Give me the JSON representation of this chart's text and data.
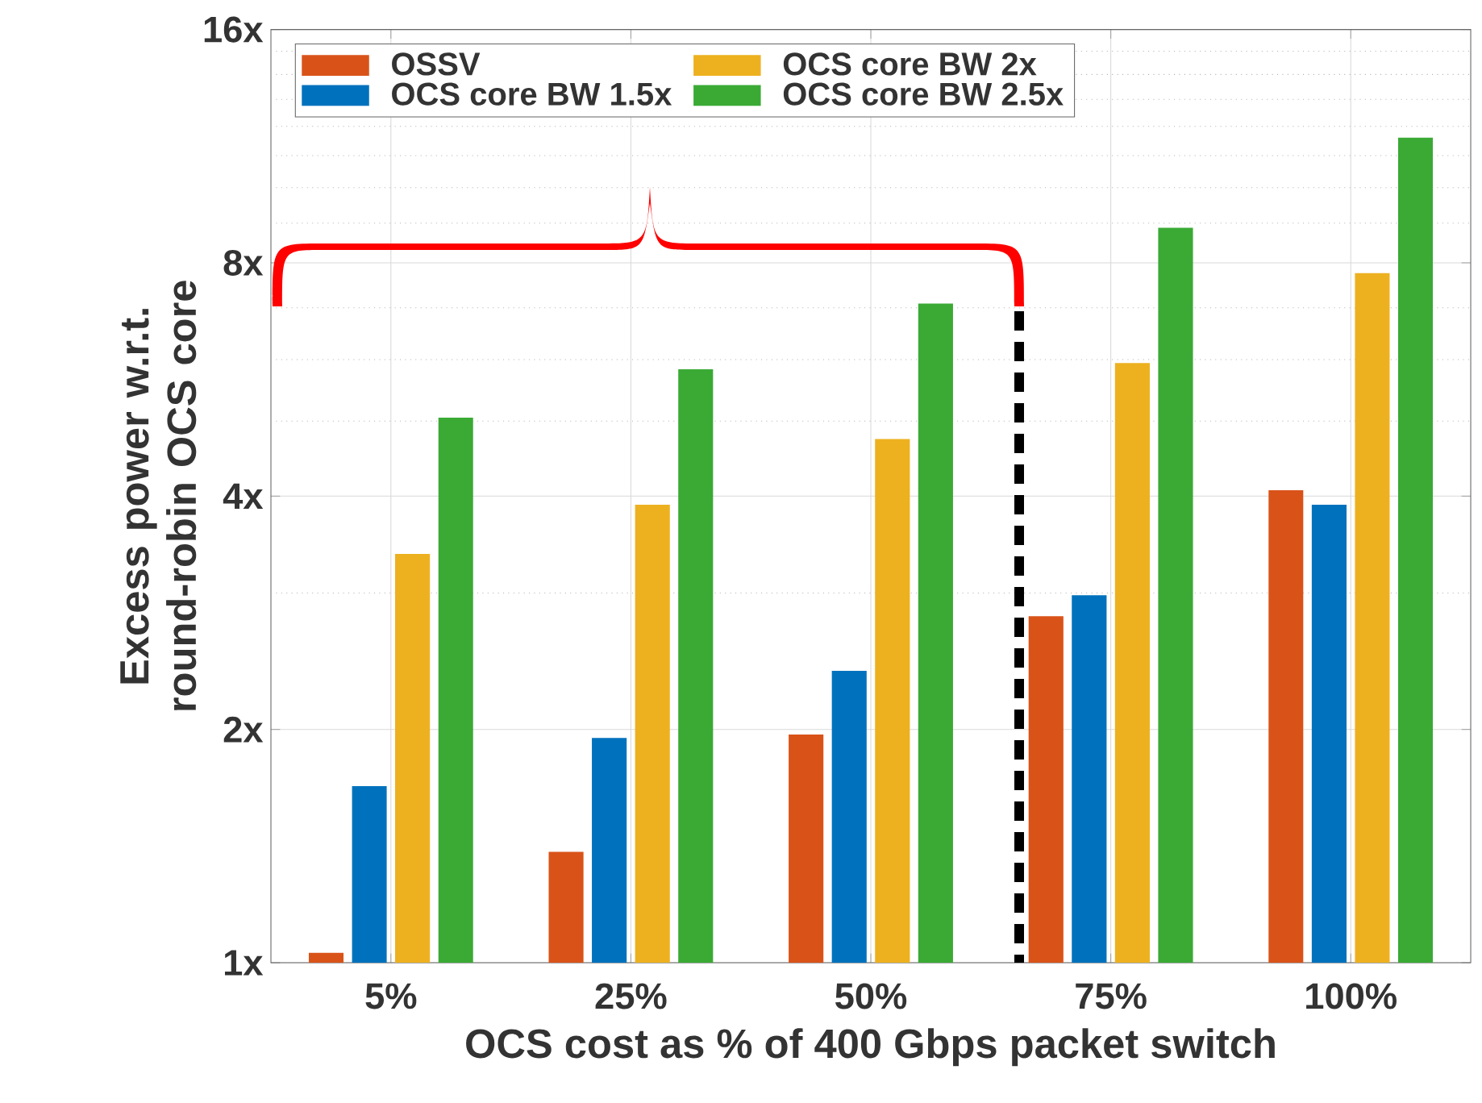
{
  "chart_data": {
    "type": "bar",
    "xlabel": "OCS cost as % of 400 Gbps packet switch",
    "ylabel": "Excess power w.r.t. round-robin OCS core",
    "categories": [
      "5%",
      "25%",
      "50%",
      "75%",
      "100%"
    ],
    "series": [
      {
        "name": "OSSV",
        "color": "#d95319",
        "values": [
          1.03,
          1.39,
          1.97,
          2.8,
          4.07
        ]
      },
      {
        "name": "OCS core BW 1.5x",
        "color": "#0072bd",
        "values": [
          1.69,
          1.95,
          2.38,
          2.98,
          3.9
        ]
      },
      {
        "name": "OCS core BW 2x",
        "color": "#edb120",
        "values": [
          3.37,
          3.9,
          4.74,
          5.94,
          7.76
        ]
      },
      {
        "name": "OCS core BW 2.5x",
        "color": "#3aaa35",
        "values": [
          5.05,
          5.83,
          7.09,
          8.88,
          11.6
        ]
      }
    ],
    "log": "y",
    "ylim": [
      1,
      16
    ],
    "yticks": [
      {
        "value": 1,
        "label": "1x"
      },
      {
        "value": 2,
        "label": "2x"
      },
      {
        "value": 4,
        "label": "4x"
      },
      {
        "value": 8,
        "label": "8x"
      },
      {
        "value": 16,
        "label": "16x"
      }
    ],
    "grid": true,
    "legend": "top left"
  }
}
